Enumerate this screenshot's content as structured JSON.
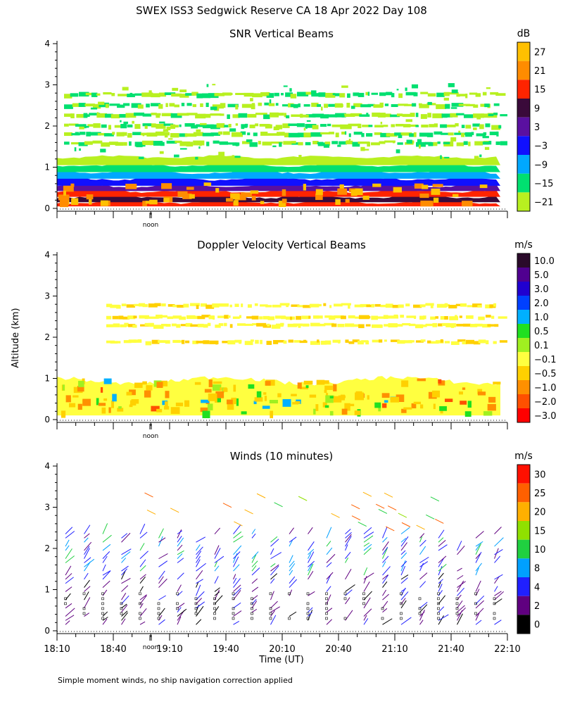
{
  "page": {
    "title": "SWEX ISS3 Sedgwick Reserve CA  18 Apr 2022 Day 108",
    "footnote": "Simple moment winds, no ship navigation correction applied",
    "ylabel": "Altitude (km)",
    "xlabel": "Time (UT)",
    "noon_label": "noon"
  },
  "chart_data": [
    {
      "type": "heatmap",
      "title": "SNR Vertical Beams",
      "colorbar_unit": "dB",
      "ylim": [
        0,
        4
      ],
      "yticks": [
        "0",
        "1",
        "2",
        "3",
        "4"
      ],
      "xlim": [
        "18:10",
        "22:10"
      ],
      "xtick_labels": [],
      "colorbar_labels": [
        "27",
        "21",
        "15",
        "9",
        "3",
        "−3",
        "−9",
        "−15",
        "−21"
      ],
      "colors": [
        "#ffc000",
        "#ff8c00",
        "#ff2400",
        "#3a0a3a",
        "#5a10a0",
        "#1010ff",
        "#00a8ff",
        "#00e070",
        "#b8f020"
      ]
    },
    {
      "type": "heatmap",
      "title": "Doppler Velocity Vertical Beams",
      "colorbar_unit": "m/s",
      "ylim": [
        0,
        4
      ],
      "yticks": [
        "0",
        "1",
        "2",
        "3",
        "4"
      ],
      "xlim": [
        "18:10",
        "22:10"
      ],
      "xtick_labels": [],
      "colorbar_labels": [
        "10.0",
        "5.0",
        "3.0",
        "2.0",
        "1.0",
        "0.5",
        "0.1",
        "−0.1",
        "−0.5",
        "−1.0",
        "−2.0",
        "−3.0"
      ],
      "colors": [
        "#2a0a2a",
        "#500090",
        "#2000d0",
        "#0040ff",
        "#00b0ff",
        "#20e020",
        "#a0f020",
        "#ffff40",
        "#ffd000",
        "#ff9000",
        "#ff5000",
        "#ff0000"
      ]
    },
    {
      "type": "scatter",
      "title": "Winds (10 minutes)",
      "colorbar_unit": "m/s",
      "ylim": [
        0,
        4
      ],
      "yticks": [
        "0",
        "1",
        "2",
        "3",
        "4"
      ],
      "xlim": [
        "18:10",
        "22:10"
      ],
      "xtick_labels": [
        "18:10",
        "18:40",
        "19:10",
        "19:40",
        "20:10",
        "20:40",
        "21:10",
        "21:40",
        "22:10"
      ],
      "colorbar_labels": [
        "30",
        "25",
        "20",
        "15",
        "10",
        "8",
        "4",
        "2",
        "0"
      ],
      "colors": [
        "#ff1000",
        "#ff6000",
        "#ffb000",
        "#90e000",
        "#20d040",
        "#00a0ff",
        "#2020ff",
        "#600080",
        "#000000"
      ]
    }
  ]
}
